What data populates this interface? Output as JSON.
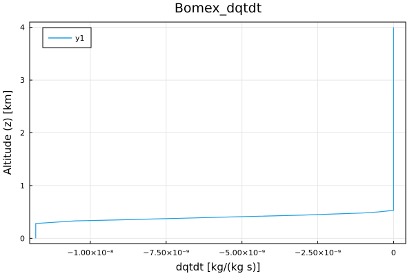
{
  "chart_data": {
    "type": "line",
    "title": "Bomex_dqtdt",
    "xlabel": "dqtdt [kg/(kg s)]",
    "ylabel": "Altitude (z) [km]",
    "xlim": [
      -1.2e-08,
      4e-10
    ],
    "ylim": [
      -0.1,
      4.1
    ],
    "x_ticks": [
      {
        "value": -1e-08,
        "label": "−1.00×10⁻⁸"
      },
      {
        "value": -7.5e-09,
        "label": "−7.50×10⁻⁹"
      },
      {
        "value": -5e-09,
        "label": "−5.00×10⁻⁹"
      },
      {
        "value": -2.5e-09,
        "label": "−2.50×10⁻⁹"
      },
      {
        "value": 0,
        "label": "0"
      }
    ],
    "y_ticks": [
      {
        "value": 0,
        "label": "0"
      },
      {
        "value": 1,
        "label": "1"
      },
      {
        "value": 2,
        "label": "2"
      },
      {
        "value": 3,
        "label": "3"
      },
      {
        "value": 4,
        "label": "4"
      }
    ],
    "grid": true,
    "legend_position": "top-left",
    "series": [
      {
        "name": "y1",
        "color": "#1f9fe0",
        "x": [
          -1.18e-08,
          -1.18e-08,
          -1.05e-08,
          -9e-09,
          -7e-09,
          -5e-09,
          -3e-09,
          -1e-09,
          -5e-10,
          0,
          0
        ],
        "y": [
          0.0,
          0.28,
          0.33,
          0.35,
          0.38,
          0.41,
          0.44,
          0.48,
          0.5,
          0.53,
          4.0
        ]
      }
    ]
  }
}
